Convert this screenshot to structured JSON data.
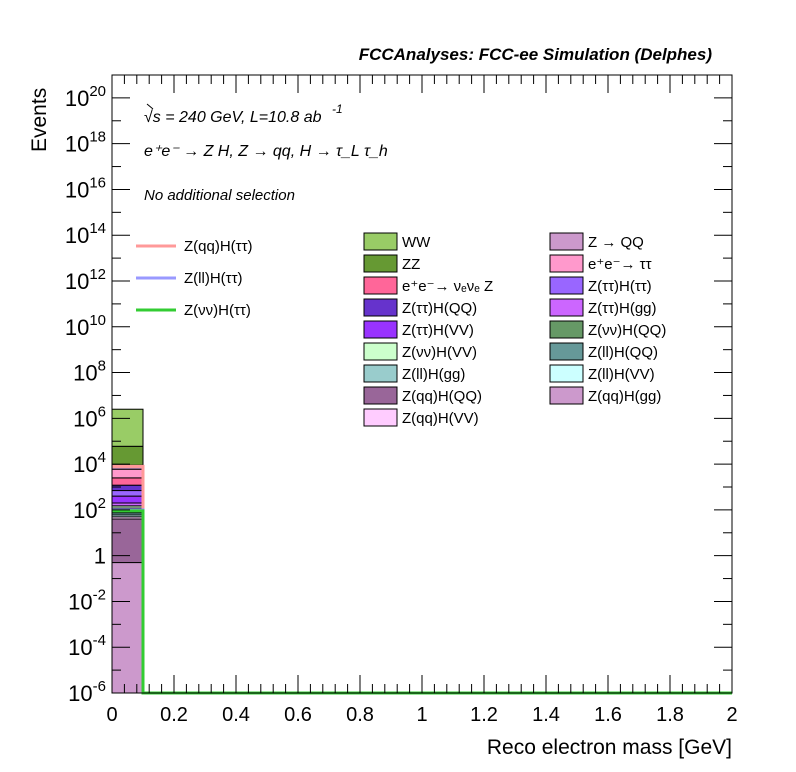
{
  "header": {
    "title": "FCCAnalyses: FCC-ee Simulation (Delphes)"
  },
  "annotations": {
    "energy": "√s = 240 GeV, L=10.8 ab",
    "lumi_exp": "-1",
    "process": "e⁺e⁻ → Z H, Z → qq, H → τ_L τ_h",
    "selection": "No additional selection"
  },
  "chart_data": {
    "type": "bar",
    "xlabel": "Reco electron mass [GeV]",
    "ylabel": "Events",
    "xlim": [
      0,
      2
    ],
    "ylim": [
      1e-06,
      1e+21
    ],
    "yscale": "log",
    "x_ticks": [
      "0",
      "0.2",
      "0.4",
      "0.6",
      "0.8",
      "1",
      "1.2",
      "1.4",
      "1.6",
      "1.8",
      "2"
    ],
    "y_ticks": [
      {
        "base": "10",
        "exp": "20",
        "value": 1e+20
      },
      {
        "base": "10",
        "exp": "18",
        "value": 1e+18
      },
      {
        "base": "10",
        "exp": "16",
        "value": 1e+16
      },
      {
        "base": "10",
        "exp": "14",
        "value": 100000000000000.0
      },
      {
        "base": "10",
        "exp": "12",
        "value": 1000000000000.0
      },
      {
        "base": "10",
        "exp": "10",
        "value": 10000000000.0
      },
      {
        "base": "10",
        "exp": "8",
        "value": 100000000.0
      },
      {
        "base": "10",
        "exp": "6",
        "value": 1000000.0
      },
      {
        "base": "10",
        "exp": "4",
        "value": 10000.0
      },
      {
        "base": "10",
        "exp": "2",
        "value": 100.0
      },
      {
        "base": "1",
        "exp": "",
        "value": 1
      },
      {
        "base": "10",
        "exp": "-2",
        "value": 0.01
      },
      {
        "base": "10",
        "exp": "-4",
        "value": 0.0001
      },
      {
        "base": "10",
        "exp": "-6",
        "value": 1e-06
      }
    ],
    "bin": [
      0,
      0.1
    ],
    "stack": [
      {
        "name": "Z(qq)H(gg)",
        "color": "#cc99cc",
        "top": 0.5
      },
      {
        "name": "Z(qq)H(QQ)",
        "color": "#996699",
        "top": 40
      },
      {
        "name": "Z(qq)H(VV)",
        "color": "#ffccff",
        "top": 50
      },
      {
        "name": "Z(ll)H(VV)",
        "color": "#ccffff",
        "top": 60
      },
      {
        "name": "Z(ll)H(QQ)",
        "color": "#669999",
        "top": 75
      },
      {
        "name": "Z(ll)H(gg)",
        "color": "#99cccc",
        "top": 100
      },
      {
        "name": "Z(νν)H(QQ)",
        "color": "#669966",
        "top": 120
      },
      {
        "name": "Z(νν)H(VV)",
        "color": "#ccffcc",
        "top": 150
      },
      {
        "name": "Z(ττ)H(gg)",
        "color": "#cc66ff",
        "top": 200
      },
      {
        "name": "Z(ττ)H(VV)",
        "color": "#9933ff",
        "top": 400
      },
      {
        "name": "Z(ττ)H(ττ)",
        "color": "#9966ff",
        "top": 700
      },
      {
        "name": "Z(ττ)H(QQ)",
        "color": "#6633cc",
        "top": 1200
      },
      {
        "name": "e⁺e⁻→ νₑνₑ Z",
        "color": "#ff6699",
        "top": 2500
      },
      {
        "name": "e⁺e⁻→ ττ",
        "color": "#ff99cc",
        "top": 6000
      },
      {
        "name": "Z → QQ",
        "color": "#cc99cc",
        "top": 9000
      },
      {
        "name": "ZZ",
        "color": "#669933",
        "top": 60000
      },
      {
        "name": "WW",
        "color": "#99cc66",
        "top": 2500000
      }
    ],
    "signals": [
      {
        "name": "Z(qq)H(ττ)",
        "color": "#ff9999",
        "value": 8000
      },
      {
        "name": "Z(ll)H(ττ)",
        "color": "#9999ff",
        "value": 100
      },
      {
        "name": "Z(νν)H(ττ)",
        "color": "#33cc33",
        "value": 90
      }
    ],
    "legend_signals": [
      "Z(qq)H(ττ)",
      "Z(ll)H(ττ)",
      "Z(νν)H(ττ)"
    ],
    "legend_bkg_col1": [
      {
        "label": "WW",
        "color": "#99cc66"
      },
      {
        "label": "ZZ",
        "color": "#669933"
      },
      {
        "label": "e⁺e⁻→ νₑνₑ Z",
        "color": "#ff6699"
      },
      {
        "label": "Z(ττ)H(QQ)",
        "color": "#6633cc"
      },
      {
        "label": "Z(ττ)H(VV)",
        "color": "#9933ff"
      },
      {
        "label": "Z(νν)H(VV)",
        "color": "#ccffcc"
      },
      {
        "label": "Z(ll)H(gg)",
        "color": "#99cccc"
      },
      {
        "label": "Z(qq)H(QQ)",
        "color": "#996699"
      },
      {
        "label": "Z(qq)H(VV)",
        "color": "#ffccff"
      }
    ],
    "legend_bkg_col2": [
      {
        "label": "Z → QQ",
        "color": "#cc99cc"
      },
      {
        "label": "e⁺e⁻→ ττ",
        "color": "#ff99cc"
      },
      {
        "label": "Z(ττ)H(ττ)",
        "color": "#9966ff"
      },
      {
        "label": "Z(ττ)H(gg)",
        "color": "#cc66ff"
      },
      {
        "label": "Z(νν)H(QQ)",
        "color": "#669966"
      },
      {
        "label": "Z(ll)H(QQ)",
        "color": "#669999"
      },
      {
        "label": "Z(ll)H(VV)",
        "color": "#ccffff"
      },
      {
        "label": "Z(qq)H(gg)",
        "color": "#cc99cc"
      }
    ]
  }
}
